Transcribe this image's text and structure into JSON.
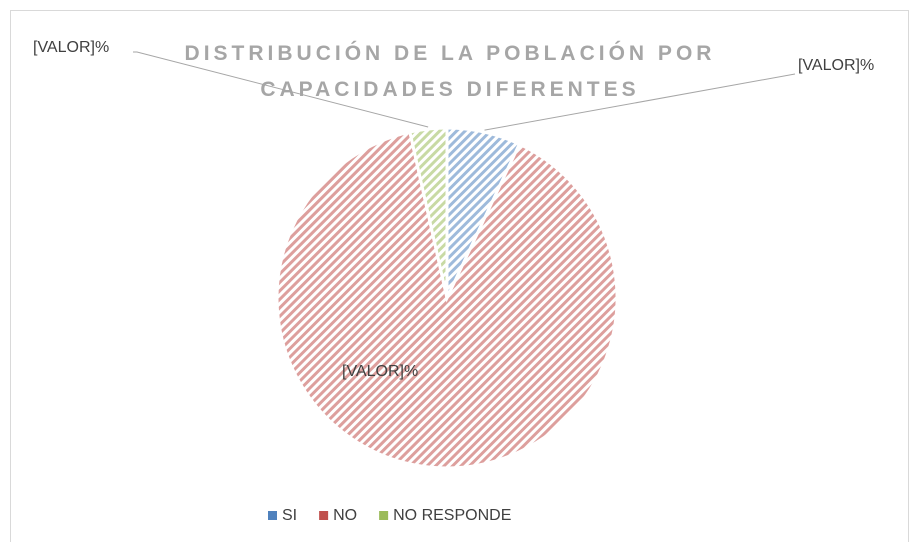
{
  "chart_data": {
    "type": "pie",
    "title": "DISTRIBUCIÓN DE LA POBLACIÓN POR CAPACIDADES DIFERENTES",
    "categories": [
      "SI",
      "NO",
      "NO RESPONDE"
    ],
    "values": [
      7,
      89.5,
      3.5
    ],
    "value_labels": [
      "[VALOR]%",
      "[VALOR]%",
      "[VALOR]%"
    ],
    "colors": [
      "#4f81bd",
      "#c0504d",
      "#9bbb59"
    ]
  }
}
